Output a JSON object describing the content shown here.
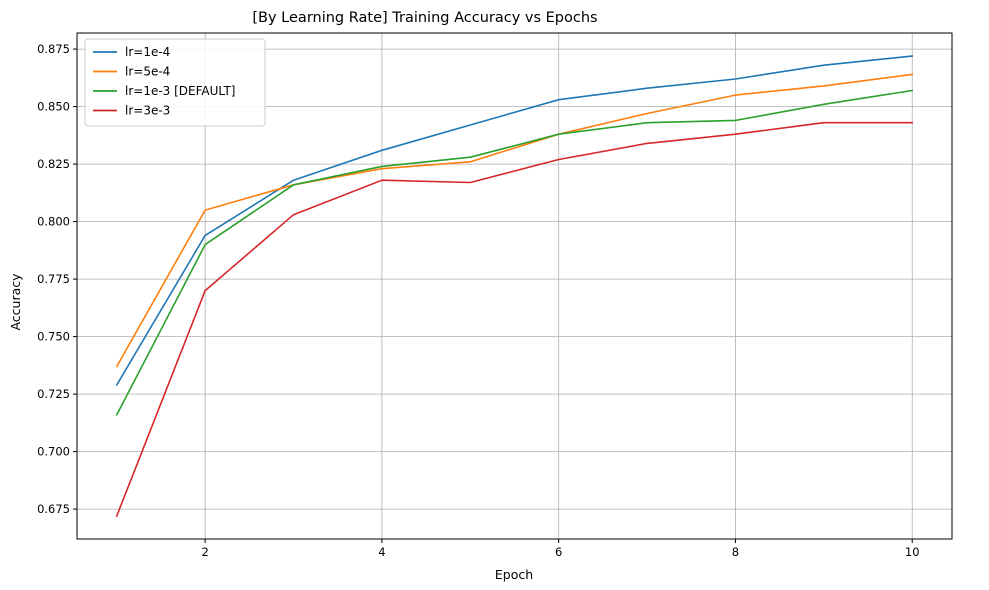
{
  "chart_data": {
    "type": "line",
    "title": "[By Learning Rate] Training Accuracy vs Epochs",
    "xlabel": "Epoch",
    "ylabel": "Accuracy",
    "x": [
      1,
      2,
      3,
      4,
      5,
      6,
      7,
      8,
      9,
      10
    ],
    "xlim": [
      0.55,
      10.45
    ],
    "ylim": [
      0.662,
      0.882
    ],
    "xticks": [
      2,
      4,
      6,
      8,
      10
    ],
    "xtick_labels": [
      "2",
      "4",
      "6",
      "8",
      "10"
    ],
    "yticks": [
      0.675,
      0.7,
      0.725,
      0.75,
      0.775,
      0.8,
      0.825,
      0.85,
      0.875
    ],
    "ytick_labels": [
      "0.675",
      "0.700",
      "0.725",
      "0.750",
      "0.775",
      "0.800",
      "0.825",
      "0.850",
      "0.875"
    ],
    "grid": true,
    "legend_position": "top-left",
    "series": [
      {
        "name": "lr=1e-4",
        "color": "#1f77b4",
        "values": [
          0.729,
          0.794,
          0.818,
          0.831,
          0.842,
          0.853,
          0.858,
          0.862,
          0.868,
          0.872
        ]
      },
      {
        "name": "lr=5e-4",
        "color": "#ff7f0e",
        "values": [
          0.737,
          0.805,
          0.816,
          0.823,
          0.826,
          0.838,
          0.847,
          0.855,
          0.859,
          0.864
        ]
      },
      {
        "name": "lr=1e-3 [DEFAULT]",
        "color": "#2ca02c",
        "values": [
          0.716,
          0.79,
          0.816,
          0.824,
          0.828,
          0.838,
          0.843,
          0.844,
          0.851,
          0.857
        ]
      },
      {
        "name": "lr=3e-3",
        "color": "#d62728",
        "values": [
          0.672,
          0.77,
          0.803,
          0.818,
          0.817,
          0.827,
          0.834,
          0.838,
          0.843,
          0.843
        ]
      }
    ]
  }
}
